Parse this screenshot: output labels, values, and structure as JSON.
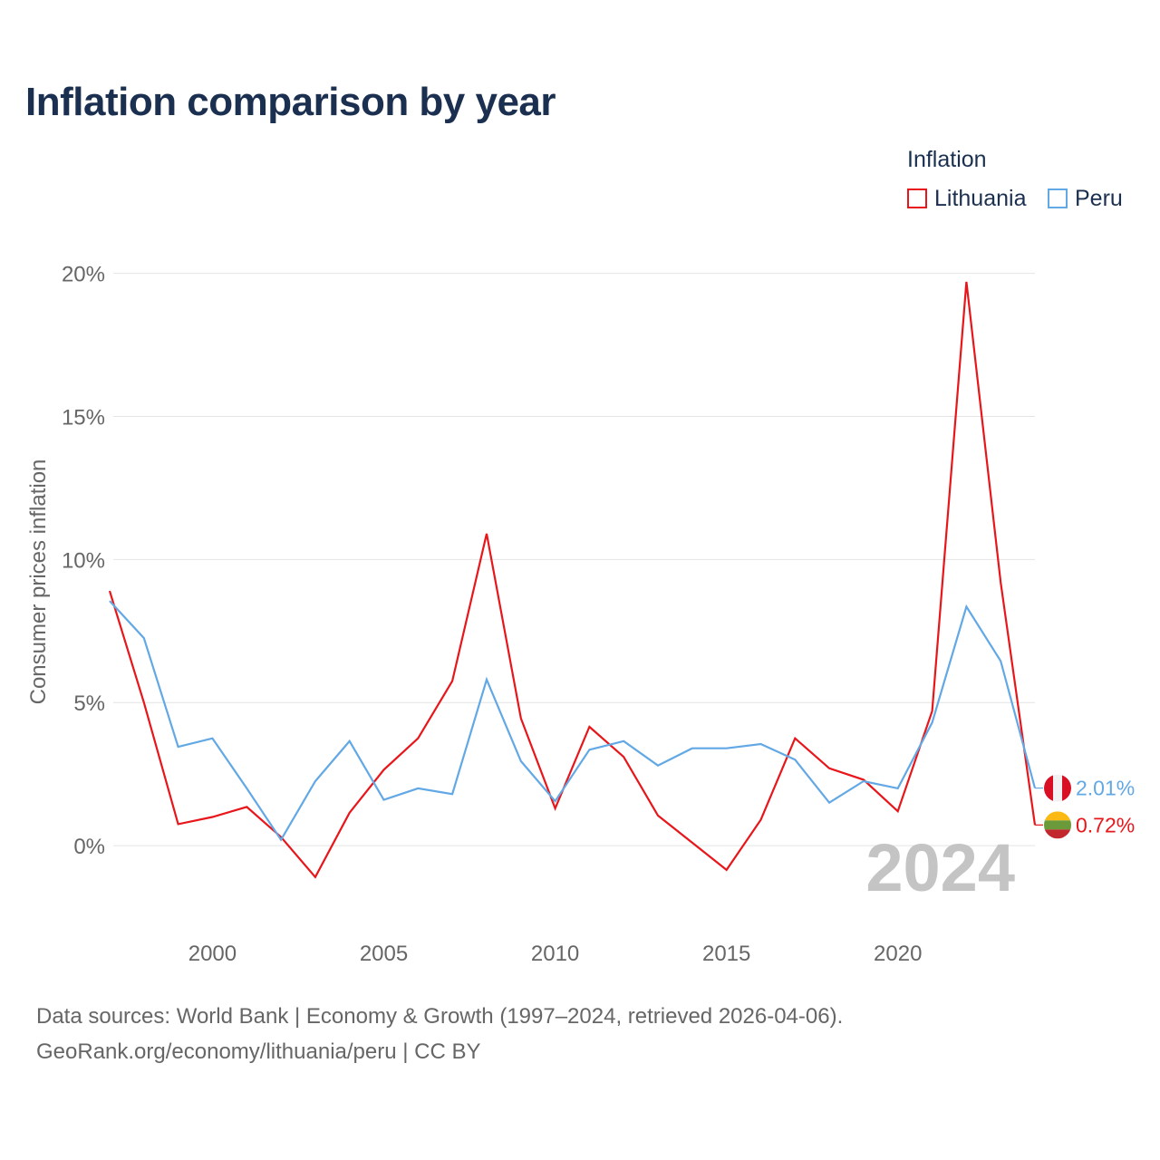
{
  "title": "Inflation comparison by year",
  "legend": {
    "title": "Inflation",
    "items": [
      {
        "label": "Lithuania",
        "color": "#e8161a"
      },
      {
        "label": "Peru",
        "color": "#62a8e5"
      }
    ]
  },
  "sources": {
    "line1": "Data sources: World Bank | Economy & Growth (1997–2024, retrieved 2026-04-06).",
    "line2": "GeoRank.org/economy/lithuania/peru | CC BY"
  },
  "chart_data": {
    "type": "line",
    "title": "Inflation comparison by year",
    "ylabel": "Consumer prices inflation",
    "xlabel": "",
    "year_watermark": "2024",
    "x": [
      1997,
      1998,
      1999,
      2000,
      2001,
      2002,
      2003,
      2004,
      2005,
      2006,
      2007,
      2008,
      2009,
      2010,
      2011,
      2012,
      2013,
      2014,
      2015,
      2016,
      2017,
      2018,
      2019,
      2020,
      2021,
      2022,
      2023,
      2024
    ],
    "xlim": [
      1997,
      2024
    ],
    "ylim": [
      -2.5,
      21
    ],
    "x_ticks": [
      {
        "value": 2000,
        "label": "2000"
      },
      {
        "value": 2005,
        "label": "2005"
      },
      {
        "value": 2010,
        "label": "2010"
      },
      {
        "value": 2015,
        "label": "2015"
      },
      {
        "value": 2020,
        "label": "2020"
      }
    ],
    "y_ticks": [
      {
        "value": 0,
        "label": "0%"
      },
      {
        "value": 5,
        "label": "5%"
      },
      {
        "value": 10,
        "label": "10%"
      },
      {
        "value": 15,
        "label": "15%"
      },
      {
        "value": 20,
        "label": "20%"
      }
    ],
    "series": [
      {
        "name": "Lithuania",
        "color": "#e8161a",
        "values": [
          8.9,
          5.0,
          0.75,
          1.0,
          1.35,
          0.3,
          -1.1,
          1.15,
          2.65,
          3.75,
          5.75,
          10.9,
          4.45,
          1.3,
          4.15,
          3.1,
          1.05,
          0.1,
          -0.85,
          0.9,
          3.75,
          2.7,
          2.3,
          1.2,
          4.7,
          19.7,
          9.2,
          0.72
        ],
        "end_label": "0.72%",
        "flag": "lithuania-flag"
      },
      {
        "name": "Peru",
        "color": "#62a8e5",
        "values": [
          8.55,
          7.25,
          3.45,
          3.75,
          2.0,
          0.2,
          2.25,
          3.65,
          1.6,
          2.0,
          1.8,
          5.8,
          2.95,
          1.55,
          3.35,
          3.65,
          2.8,
          3.4,
          3.4,
          3.55,
          3.0,
          1.5,
          2.25,
          2.0,
          4.3,
          8.35,
          6.45,
          2.01
        ],
        "end_label": "2.01%",
        "flag": "peru-flag"
      }
    ]
  }
}
